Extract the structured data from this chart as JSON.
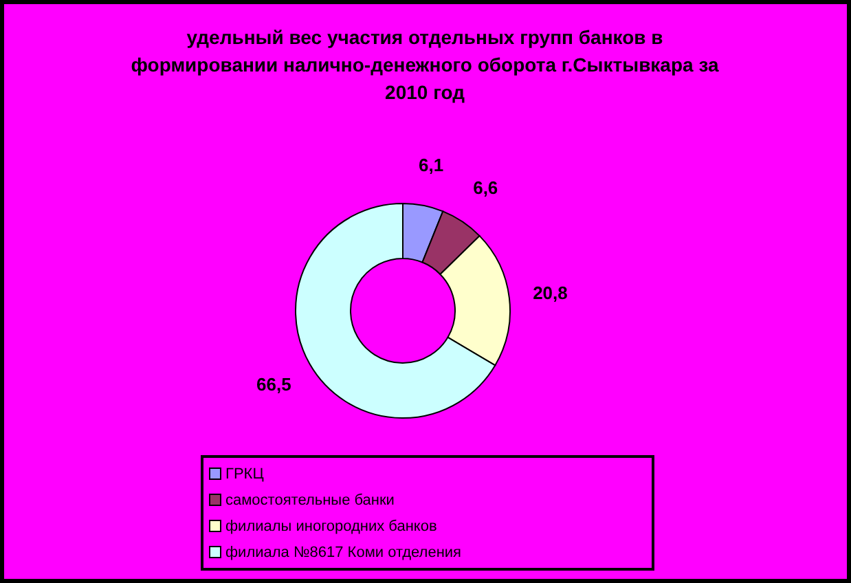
{
  "chart_data": {
    "type": "donut",
    "title": "удельный вес участия отдельных групп банков в формировании налично-денежного оборота г.Сыктывкара за 2010 год",
    "categories": [
      "ГРКЦ",
      "самостоятельные банки",
      "филиалы иногородних банков",
      "филиала №8617 Коми отделения"
    ],
    "values": [
      6.1,
      6.6,
      20.8,
      66.5
    ],
    "value_labels": [
      "6,1",
      "6,6",
      "20,8",
      "66,5"
    ],
    "colors": [
      "#9999ff",
      "#993366",
      "#ffffcc",
      "#ccffff"
    ],
    "legend": "bottom"
  }
}
